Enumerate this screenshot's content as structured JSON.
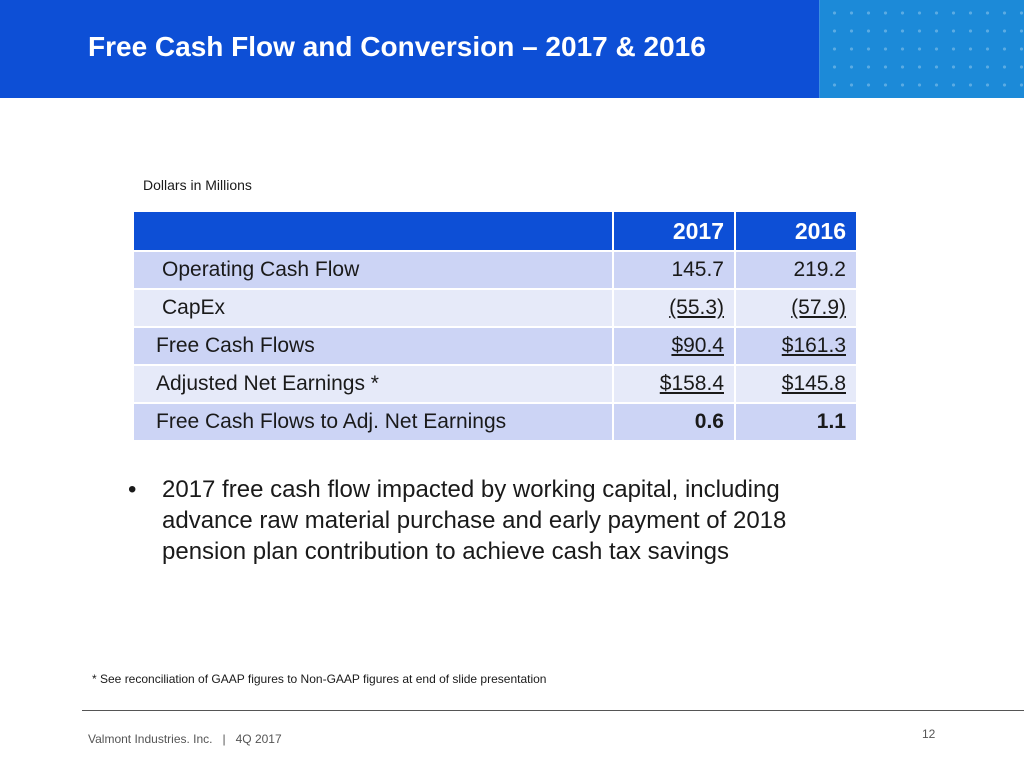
{
  "header": {
    "title": "Free Cash Flow and Conversion – 2017 & 2016"
  },
  "units_note": "Dollars in Millions",
  "table": {
    "header_label": "",
    "columns": [
      "2017",
      "2016"
    ],
    "rows": [
      {
        "label": "Operating Cash Flow",
        "v2017": "145.7",
        "v2016": "219.2"
      },
      {
        "label": "CapEx",
        "v2017": "(55.3)",
        "v2016": "(57.9)"
      },
      {
        "label": "Free Cash Flows",
        "v2017": "$90.4",
        "v2016": "$161.3"
      },
      {
        "label": "Adjusted Net Earnings *",
        "v2017": "$158.4",
        "v2016": "$145.8"
      },
      {
        "label": "Free Cash Flows to Adj. Net Earnings",
        "v2017": "0.6",
        "v2016": "1.1"
      }
    ]
  },
  "bullet": {
    "marker": "•",
    "text": "2017 free cash flow impacted by working capital, including advance raw material purchase and early payment of 2018 pension plan contribution to achieve cash tax savings"
  },
  "footnote": "* See reconciliation of GAAP figures to Non-GAAP figures at end of slide presentation",
  "footer": {
    "company": "Valmont Industries. Inc.   |   4Q 2017",
    "page_number": "12"
  },
  "colors": {
    "header_blue": "#0d4fd6",
    "pattern_blue": "#1c8ad8",
    "row_dark": "#ccd4f5",
    "row_light": "#e6eaf9"
  }
}
